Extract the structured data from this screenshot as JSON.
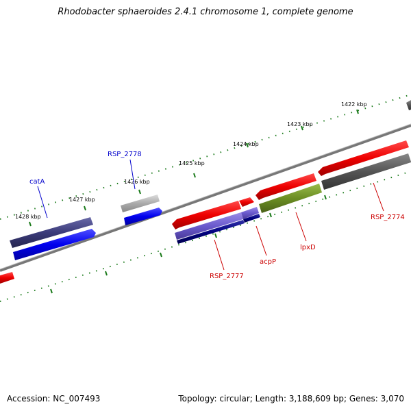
{
  "title": "Rhodobacter sphaeroides 2.4.1 chromosome 1, complete genome",
  "footer": {
    "accession_label": "Accession:",
    "accession": "NC_007493",
    "topology_label": "Topology:",
    "topology": "circular",
    "length_label": "Length:",
    "length": "3,188,609 bp",
    "genes_label": "Genes:",
    "genes": "3,070"
  },
  "footer_text": {
    "left": "Accession: NC_007493",
    "right": "Topology: circular; Length: 3,188,609 bp; Genes: 3,070"
  },
  "ticks": [
    "1422 kbp",
    "1423 kbp",
    "1424 kbp",
    "1425 kbp",
    "1426 kbp",
    "1427 kbp",
    "1428 kbp"
  ],
  "genes": {
    "catA": "catA",
    "RSP_2778": "RSP_2778",
    "RSP_2777": "RSP_2777",
    "acpP": "acpP",
    "lpxD": "lpxD",
    "RSP_2774": "RSP_2774"
  },
  "colors": {
    "red": "#ee0000",
    "blue": "#0000ee",
    "navy": "#000080",
    "slate": "#3b3b7a",
    "gray": "#555555",
    "light_gray": "#aaaaaa",
    "olive": "#6b8e23",
    "lavender": "#6a5acd",
    "tick_green": "#006400",
    "label_blue": "#0000cc",
    "label_red": "#cc0000"
  }
}
